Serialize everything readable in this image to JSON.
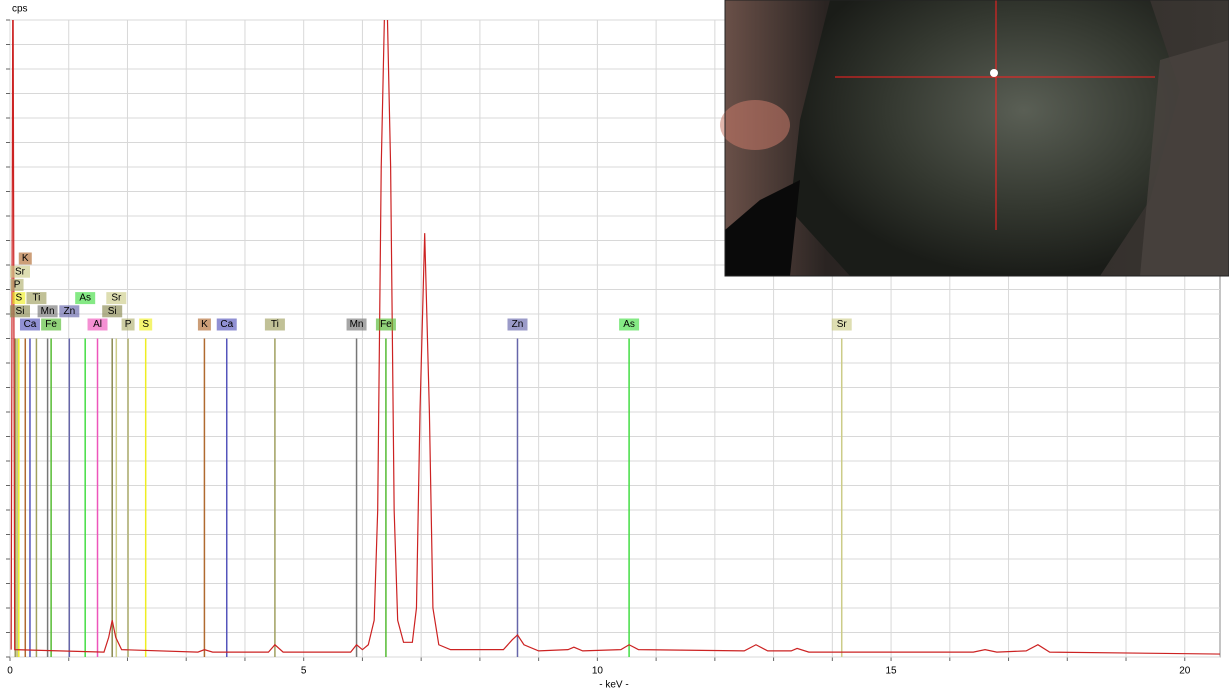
{
  "chart_data": {
    "type": "spectrum",
    "y_label": "cps",
    "x_label": "- keV -",
    "xlim": [
      0,
      20.6
    ],
    "ylim": [
      0,
      26
    ],
    "xticks": [
      0,
      5,
      10,
      15,
      20
    ],
    "xgrid": [
      0,
      1,
      2,
      3,
      4,
      5,
      6,
      7,
      8,
      9,
      10,
      11,
      12,
      13,
      14,
      15,
      16,
      17,
      18,
      19,
      20
    ],
    "ygrid": [
      0,
      1,
      2,
      3,
      4,
      5,
      6,
      7,
      8,
      9,
      10,
      11,
      12,
      13,
      14,
      15,
      16,
      17,
      18,
      19,
      20,
      21,
      22,
      23,
      24,
      25,
      26
    ],
    "grid": true,
    "spectrum": {
      "color": "#cc2222",
      "x": [
        0.02,
        0.05,
        0.08,
        1.6,
        1.68,
        1.74,
        1.8,
        1.9,
        3.2,
        3.31,
        3.45,
        4.4,
        4.51,
        4.65,
        5.8,
        5.9,
        6.0,
        6.1,
        6.2,
        6.26,
        6.32,
        6.4,
        6.48,
        6.54,
        6.6,
        6.7,
        6.85,
        6.92,
        6.98,
        7.06,
        7.14,
        7.2,
        7.3,
        7.5,
        8.4,
        8.55,
        8.64,
        8.75,
        9.0,
        9.5,
        9.6,
        9.75,
        10.4,
        10.54,
        10.7,
        12.5,
        12.7,
        12.9,
        13.3,
        13.4,
        13.6,
        16.4,
        16.6,
        16.8,
        17.3,
        17.5,
        17.7,
        19.5,
        20.6
      ],
      "values": [
        0.3,
        30,
        0.3,
        0.2,
        0.8,
        1.5,
        0.8,
        0.3,
        0.2,
        0.3,
        0.2,
        0.2,
        0.5,
        0.2,
        0.2,
        0.5,
        0.3,
        0.5,
        1.5,
        6,
        20,
        29,
        20,
        6,
        1.5,
        0.6,
        0.6,
        2,
        10,
        17.3,
        10,
        2,
        0.5,
        0.3,
        0.3,
        0.7,
        0.9,
        0.5,
        0.25,
        0.3,
        0.4,
        0.25,
        0.3,
        0.5,
        0.3,
        0.25,
        0.5,
        0.25,
        0.25,
        0.35,
        0.2,
        0.2,
        0.3,
        0.2,
        0.25,
        0.5,
        0.2,
        0.15,
        0.12
      ]
    },
    "marker_height": 13,
    "markers": [
      {
        "label": "Ca",
        "energy": 3.69,
        "color": "#5555bb"
      },
      {
        "label": "Fe",
        "energy": 6.4,
        "color": "#55bb33"
      },
      {
        "label": "Zn",
        "energy": 8.64,
        "color": "#6666aa"
      },
      {
        "label": "As",
        "energy": 10.54,
        "color": "#44dd44"
      },
      {
        "label": "Sr",
        "energy": 14.16,
        "color": "#cccc88"
      },
      {
        "label": "K",
        "energy": 3.31,
        "color": "#b06a30"
      },
      {
        "label": "Ti",
        "energy": 4.51,
        "color": "#a0a060"
      },
      {
        "label": "Mn",
        "energy": 5.9,
        "color": "#777777"
      },
      {
        "label": "Al",
        "energy": 1.49,
        "color": "#ee55bb"
      },
      {
        "label": "Si",
        "energy": 1.74,
        "color": "#888850"
      },
      {
        "label": "P",
        "energy": 2.01,
        "color": "#b0b070"
      },
      {
        "label": "S",
        "energy": 2.31,
        "color": "#eeee22"
      },
      {
        "label": "Ca",
        "energy": 0.34,
        "color": "#5555bb"
      },
      {
        "label": "Fe",
        "energy": 0.7,
        "color": "#55bb33"
      },
      {
        "label": "Zn",
        "energy": 1.01,
        "color": "#6666aa"
      },
      {
        "label": "Si",
        "energy": 0.09,
        "color": "#888850"
      },
      {
        "label": "Ti",
        "energy": 0.45,
        "color": "#a0a060"
      },
      {
        "label": "As",
        "energy": 1.28,
        "color": "#44dd44"
      },
      {
        "label": "Sr",
        "energy": 1.81,
        "color": "#cccc88"
      },
      {
        "label": "S",
        "energy": 0.15,
        "color": "#eeee22"
      },
      {
        "label": "Mn",
        "energy": 0.64,
        "color": "#777777"
      },
      {
        "label": "P",
        "energy": 0.12,
        "color": "#b0b070"
      },
      {
        "label": "Sr",
        "energy": 0.11,
        "color": "#cccc88"
      },
      {
        "label": "K",
        "energy": 0.26,
        "color": "#b06a30"
      }
    ]
  }
}
